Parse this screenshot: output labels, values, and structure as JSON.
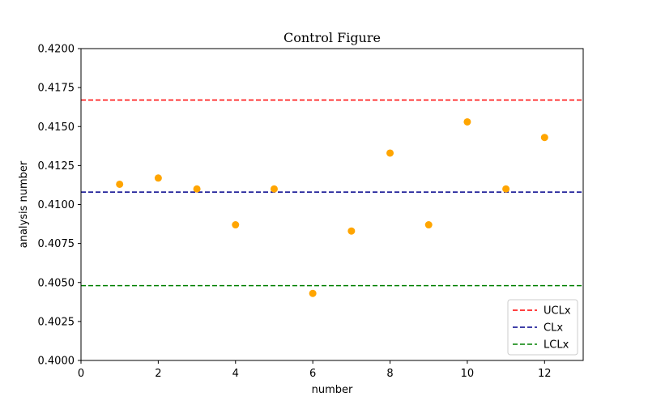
{
  "chart_data": {
    "type": "scatter",
    "title": "Control Figure",
    "xlabel": "number",
    "ylabel": "analysis number",
    "xlim": [
      0,
      13
    ],
    "ylim": [
      0.4,
      0.42
    ],
    "xticks": [
      0,
      2,
      4,
      6,
      8,
      10,
      12
    ],
    "yticks": [
      0.4,
      0.4025,
      0.405,
      0.4075,
      0.41,
      0.4125,
      0.415,
      0.4175,
      0.42
    ],
    "ytick_labels": [
      "0.4000",
      "0.4025",
      "0.4050",
      "0.4075",
      "0.4100",
      "0.4125",
      "0.4150",
      "0.4175",
      "0.4200"
    ],
    "grid": false,
    "points": {
      "x": [
        1,
        2,
        3,
        4,
        5,
        6,
        7,
        8,
        9,
        10,
        11,
        12
      ],
      "y": [
        0.4113,
        0.4117,
        0.411,
        0.4087,
        0.411,
        0.4043,
        0.4083,
        0.4133,
        0.4087,
        0.4153,
        0.411,
        0.4143
      ],
      "color": "#FFA500"
    },
    "control_lines": [
      {
        "name": "UCLx",
        "value": 0.4167,
        "color": "#FF0000"
      },
      {
        "name": "CLx",
        "value": 0.4108,
        "color": "#00008B"
      },
      {
        "name": "LCLx",
        "value": 0.4048,
        "color": "#008000"
      }
    ],
    "legend": {
      "position": "lower-right",
      "entries": [
        "UCLx",
        "CLx",
        "LCLx"
      ]
    }
  }
}
